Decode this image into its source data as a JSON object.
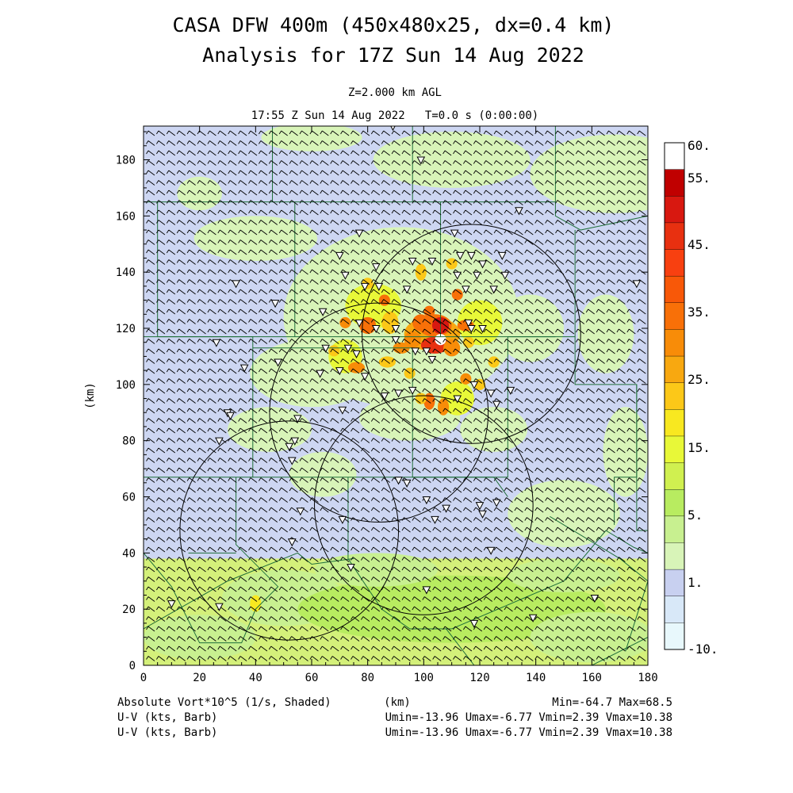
{
  "chart_data": {
    "type": "heatmap",
    "title": "CASA DFW 400m (450x480x25, dx=0.4 km)",
    "subtitle": "Analysis for 17Z Sun 14 Aug 2022",
    "level_label": "Z=2.000 km AGL",
    "time_label": "17:55 Z Sun 14 Aug 2022   T=0.0 s (0:00:00)",
    "xlabel": "(km)",
    "ylabel": "(km)",
    "xlim": [
      0,
      180
    ],
    "ylim": [
      0,
      192
    ],
    "x_ticks": [
      "0",
      "20",
      "40",
      "60",
      "80",
      "100",
      "120",
      "140",
      "160",
      "180"
    ],
    "y_ticks": [
      "0",
      "20",
      "40",
      "60",
      "80",
      "100",
      "120",
      "140",
      "160",
      "180"
    ],
    "colorbar": {
      "labels": [
        "60.",
        "55.",
        "45.",
        "35.",
        "25.",
        "15.",
        "5.",
        "1.",
        "-10."
      ],
      "colors": [
        "#ffffff",
        "#c00000",
        "#d81810",
        "#e83010",
        "#f84010",
        "#f85808",
        "#f87008",
        "#f88c08",
        "#f8a810",
        "#fcc818",
        "#f8e820",
        "#e8f838",
        "#d0f050",
        "#b8ec60",
        "#c8f090",
        "#d8f4b8",
        "#c8d0f0",
        "#d8e8f8",
        "#e8f8fc"
      ]
    },
    "field": "Absolute Vort*10^5 (1/s, Shaded)",
    "vector_field_1": "U-V (kts, Barb)",
    "vector_field_2": "U-V (kts, Barb)",
    "field_stats": "Min=-64.7 Max=68.5",
    "vector_stats_1": "Umin=-13.96 Umax=-6.77 Vmin=2.39 Vmax=10.38",
    "vector_stats_2": "Umin=-13.96 Umax=-6.77 Vmin=2.39 Vmax=10.38",
    "radar_rings": [
      {
        "center": [
          117,
          118
        ],
        "radius": 39
      },
      {
        "center": [
          84,
          90
        ],
        "radius": 39
      },
      {
        "center": [
          100,
          57
        ],
        "radius": 39
      },
      {
        "center": [
          52,
          48
        ],
        "radius": 39
      }
    ],
    "stations": [
      [
        89,
        192
      ],
      [
        99,
        180
      ],
      [
        77,
        154
      ],
      [
        111,
        154
      ],
      [
        134,
        162
      ],
      [
        70,
        146
      ],
      [
        72,
        139
      ],
      [
        83,
        142
      ],
      [
        96,
        144
      ],
      [
        103,
        144
      ],
      [
        113,
        146
      ],
      [
        117,
        146
      ],
      [
        121,
        143
      ],
      [
        128,
        146
      ],
      [
        112,
        139
      ],
      [
        119,
        139
      ],
      [
        129,
        139
      ],
      [
        79,
        135
      ],
      [
        84,
        135
      ],
      [
        94,
        134
      ],
      [
        115,
        134
      ],
      [
        125,
        134
      ],
      [
        47,
        129
      ],
      [
        33,
        136
      ],
      [
        64,
        126
      ],
      [
        77,
        122
      ],
      [
        83,
        120
      ],
      [
        90,
        120
      ],
      [
        116,
        122
      ],
      [
        117,
        120
      ],
      [
        121,
        120
      ],
      [
        90,
        116
      ],
      [
        97,
        112
      ],
      [
        101,
        112
      ],
      [
        103,
        109
      ],
      [
        65,
        113
      ],
      [
        73,
        113
      ],
      [
        76,
        111
      ],
      [
        26,
        115
      ],
      [
        36,
        106
      ],
      [
        48,
        108
      ],
      [
        63,
        104
      ],
      [
        70,
        105
      ],
      [
        79,
        103
      ],
      [
        86,
        96
      ],
      [
        91,
        97
      ],
      [
        96,
        98
      ],
      [
        112,
        95
      ],
      [
        118,
        100
      ],
      [
        124,
        97
      ],
      [
        126,
        93
      ],
      [
        131,
        98
      ],
      [
        71,
        91
      ],
      [
        30,
        90
      ],
      [
        31,
        89
      ],
      [
        27,
        80
      ],
      [
        55,
        88
      ],
      [
        54,
        80
      ],
      [
        52,
        78
      ],
      [
        53,
        73
      ],
      [
        91,
        66
      ],
      [
        94,
        65
      ],
      [
        101,
        59
      ],
      [
        108,
        56
      ],
      [
        120,
        57
      ],
      [
        126,
        58
      ],
      [
        56,
        55
      ],
      [
        71,
        52
      ],
      [
        104,
        52
      ],
      [
        121,
        54
      ],
      [
        53,
        44
      ],
      [
        74,
        35
      ],
      [
        124,
        41
      ],
      [
        101,
        27
      ],
      [
        118,
        15
      ],
      [
        139,
        17
      ],
      [
        161,
        24
      ],
      [
        10,
        22
      ],
      [
        27,
        21
      ],
      [
        176,
        136
      ]
    ]
  }
}
